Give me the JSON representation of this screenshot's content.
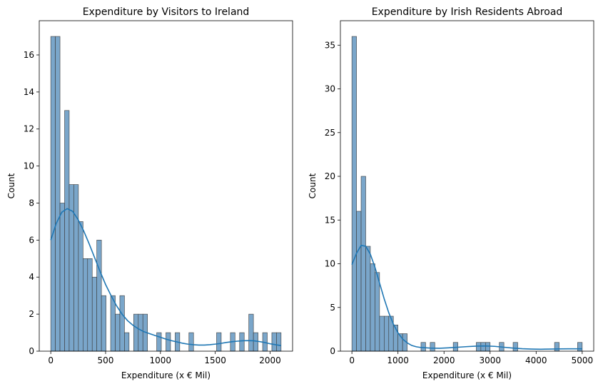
{
  "chart_data": [
    {
      "type": "histogram",
      "title": "Expenditure by Visitors to Ireland",
      "xlabel": "Expenditure (x € Mil)",
      "ylabel": "Count",
      "xlim": [
        -105,
        2205
      ],
      "ylim": [
        0,
        17.85
      ],
      "xticks": [
        0,
        500,
        1000,
        1500,
        2000
      ],
      "yticks": [
        0,
        2,
        4,
        6,
        8,
        10,
        12,
        14,
        16
      ],
      "bin_start": 0,
      "bin_width": 42,
      "counts": [
        17,
        17,
        8,
        13,
        9,
        9,
        7,
        5,
        5,
        4,
        6,
        3,
        0,
        3,
        2,
        3,
        1,
        0,
        2,
        2,
        2,
        0,
        0,
        1,
        0,
        1,
        0,
        1,
        0,
        0,
        1,
        0,
        0,
        0,
        0,
        0,
        1,
        0,
        0,
        1,
        0,
        1,
        0,
        2,
        1,
        0,
        1,
        0,
        1,
        1
      ],
      "kde": [
        [
          0,
          6.0
        ],
        [
          50,
          6.9
        ],
        [
          100,
          7.5
        ],
        [
          150,
          7.7
        ],
        [
          200,
          7.55
        ],
        [
          250,
          7.1
        ],
        [
          300,
          6.5
        ],
        [
          350,
          5.8
        ],
        [
          400,
          5.05
        ],
        [
          450,
          4.3
        ],
        [
          500,
          3.6
        ],
        [
          550,
          3.0
        ],
        [
          600,
          2.45
        ],
        [
          650,
          2.0
        ],
        [
          700,
          1.65
        ],
        [
          750,
          1.4
        ],
        [
          800,
          1.2
        ],
        [
          850,
          1.05
        ],
        [
          900,
          0.95
        ],
        [
          950,
          0.85
        ],
        [
          1000,
          0.75
        ],
        [
          1050,
          0.65
        ],
        [
          1100,
          0.57
        ],
        [
          1150,
          0.5
        ],
        [
          1200,
          0.43
        ],
        [
          1250,
          0.38
        ],
        [
          1300,
          0.35
        ],
        [
          1350,
          0.33
        ],
        [
          1400,
          0.33
        ],
        [
          1450,
          0.35
        ],
        [
          1500,
          0.38
        ],
        [
          1550,
          0.42
        ],
        [
          1600,
          0.47
        ],
        [
          1650,
          0.51
        ],
        [
          1700,
          0.54
        ],
        [
          1750,
          0.56
        ],
        [
          1800,
          0.57
        ],
        [
          1850,
          0.56
        ],
        [
          1900,
          0.52
        ],
        [
          1950,
          0.47
        ],
        [
          2000,
          0.4
        ],
        [
          2050,
          0.35
        ],
        [
          2100,
          0.3
        ]
      ]
    },
    {
      "type": "histogram",
      "title": "Expenditure by Irish Residents Abroad",
      "xlabel": "Expenditure (x € Mil)",
      "ylabel": "Count",
      "xlim": [
        -250,
        5250
      ],
      "ylim": [
        0,
        37.8
      ],
      "xticks": [
        0,
        1000,
        2000,
        3000,
        4000,
        5000
      ],
      "yticks": [
        0,
        5,
        10,
        15,
        20,
        25,
        30,
        35
      ],
      "bin_start": 0,
      "bin_width": 100,
      "counts": [
        36,
        16,
        20,
        12,
        10,
        9,
        4,
        4,
        4,
        3,
        2,
        2,
        0,
        0,
        0,
        1,
        0,
        1,
        0,
        0,
        0,
        0,
        1,
        0,
        0,
        0,
        0,
        1,
        1,
        1,
        0,
        0,
        1,
        0,
        0,
        1,
        0,
        0,
        0,
        0,
        0,
        0,
        0,
        0,
        1,
        0,
        0,
        0,
        0,
        1
      ],
      "kde": [
        [
          0,
          9.9
        ],
        [
          100,
          11.2
        ],
        [
          200,
          12.1
        ],
        [
          300,
          12.0
        ],
        [
          400,
          11.1
        ],
        [
          500,
          9.6
        ],
        [
          600,
          7.8
        ],
        [
          700,
          6.0
        ],
        [
          800,
          4.4
        ],
        [
          900,
          3.1
        ],
        [
          1000,
          2.1
        ],
        [
          1100,
          1.4
        ],
        [
          1200,
          0.95
        ],
        [
          1300,
          0.65
        ],
        [
          1400,
          0.5
        ],
        [
          1500,
          0.42
        ],
        [
          1700,
          0.35
        ],
        [
          1900,
          0.33
        ],
        [
          2100,
          0.38
        ],
        [
          2300,
          0.45
        ],
        [
          2500,
          0.52
        ],
        [
          2700,
          0.58
        ],
        [
          2900,
          0.6
        ],
        [
          3100,
          0.55
        ],
        [
          3300,
          0.45
        ],
        [
          3500,
          0.35
        ],
        [
          3700,
          0.28
        ],
        [
          3900,
          0.24
        ],
        [
          4100,
          0.22
        ],
        [
          4300,
          0.24
        ],
        [
          4500,
          0.26
        ],
        [
          4700,
          0.27
        ],
        [
          4900,
          0.27
        ],
        [
          5000,
          0.27
        ]
      ]
    }
  ],
  "colors": {
    "bar_fill": "#7aa6ca",
    "bar_edge": "#3a3a3a",
    "kde_line": "#1f77b4"
  }
}
